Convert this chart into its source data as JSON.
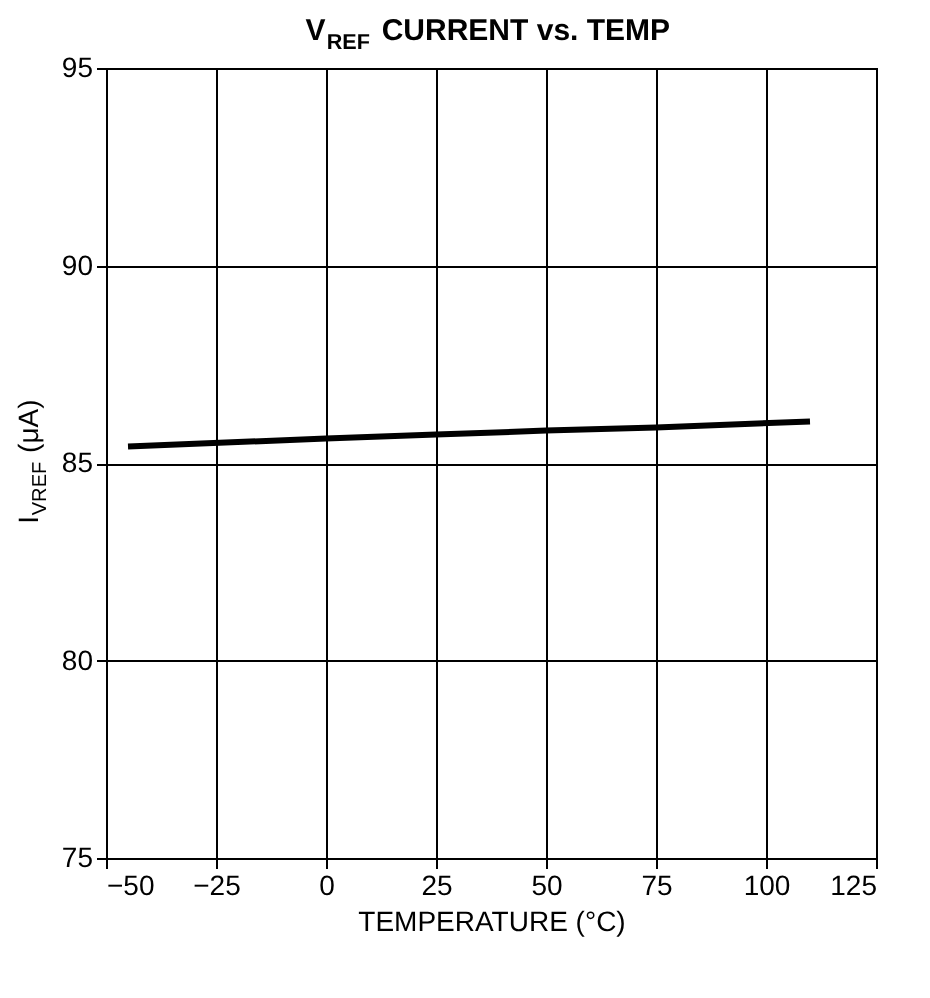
{
  "chart_data": {
    "type": "line",
    "title": "V$_{REF}$ CURRENT vs. TEMP",
    "xlabel": "TEMPERATURE (°C)",
    "ylabel": "I$_{VREF}$ (μA)",
    "x": [
      -45,
      0,
      25,
      50,
      75,
      110
    ],
    "series": [
      {
        "color": "#000000",
        "values": [
          85.42,
          85.62,
          85.72,
          85.82,
          85.9,
          86.05
        ]
      }
    ],
    "xlim": [
      -50,
      125
    ],
    "xticks": [
      -50,
      -25,
      0,
      25,
      50,
      75,
      100,
      125
    ],
    "ylim": [
      75,
      95
    ],
    "yticks": [
      75,
      80,
      85,
      90,
      95
    ],
    "grid": true,
    "line_style": "solid",
    "marker": "none"
  }
}
